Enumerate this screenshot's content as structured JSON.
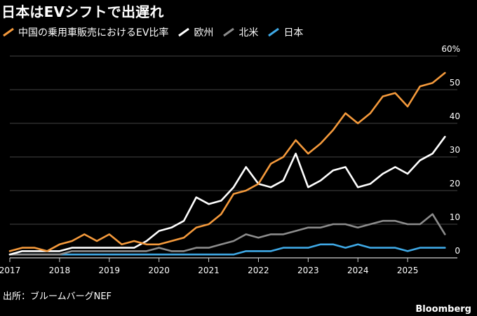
{
  "chart_data": {
    "type": "line",
    "title": "日本はEVシフトで出遅れ",
    "source": "出所：ブルームバーグNEF",
    "brand": "Bloomberg",
    "x_ticks": [
      "2017",
      "2018",
      "2019",
      "2020",
      "2021",
      "2022",
      "2023",
      "2024",
      "2025"
    ],
    "y_ticks": [
      "0",
      "10",
      "20",
      "30",
      "40",
      "50",
      "60%"
    ],
    "xlim": [
      2017.0,
      2026.0
    ],
    "ylim": [
      0,
      60
    ],
    "y_axis_side": "right",
    "grid": "horizontal",
    "legend_position": "top-left",
    "x": [
      2017.0,
      2017.25,
      2017.5,
      2017.75,
      2018.0,
      2018.25,
      2018.5,
      2018.75,
      2019.0,
      2019.25,
      2019.5,
      2019.75,
      2020.0,
      2020.25,
      2020.5,
      2020.75,
      2021.0,
      2021.25,
      2021.5,
      2021.75,
      2022.0,
      2022.25,
      2022.5,
      2022.75,
      2023.0,
      2023.25,
      2023.5,
      2023.75,
      2024.0,
      2024.25,
      2024.5,
      2024.75,
      2025.0,
      2025.25,
      2025.5,
      2025.75
    ],
    "series": [
      {
        "name": "中国の乗用車販売におけるEV比率",
        "color": "#f59a3c",
        "values": [
          2,
          3,
          3,
          2,
          4,
          5,
          7,
          5,
          7,
          4,
          5,
          4,
          4,
          5,
          6,
          9,
          10,
          13,
          19,
          20,
          22,
          28,
          30,
          35,
          31,
          34,
          38,
          43,
          40,
          43,
          48,
          49,
          45,
          51,
          52,
          55
        ]
      },
      {
        "name": "欧州",
        "color": "#ffffff",
        "values": [
          1,
          2,
          2,
          2,
          2,
          3,
          3,
          3,
          3,
          3,
          3,
          5,
          8,
          9,
          11,
          18,
          16,
          17,
          21,
          27,
          22,
          21,
          23,
          31,
          21,
          23,
          26,
          27,
          21,
          22,
          25,
          27,
          25,
          29,
          31,
          36
        ]
      },
      {
        "name": "北米",
        "color": "#8c8c8c",
        "values": [
          1,
          1,
          1,
          1,
          1,
          2,
          2,
          2,
          2,
          2,
          2,
          2,
          3,
          2,
          2,
          3,
          3,
          4,
          5,
          7,
          6,
          7,
          7,
          8,
          9,
          9,
          10,
          10,
          9,
          10,
          11,
          11,
          10,
          10,
          13,
          7
        ]
      },
      {
        "name": "日本",
        "color": "#3fa9e6",
        "values": [
          1,
          1,
          1,
          1,
          1,
          1,
          1,
          1,
          1,
          1,
          1,
          1,
          1,
          1,
          1,
          1,
          1,
          1,
          1,
          2,
          2,
          2,
          3,
          3,
          3,
          4,
          4,
          3,
          4,
          3,
          3,
          3,
          2,
          3,
          3,
          3
        ]
      }
    ]
  }
}
